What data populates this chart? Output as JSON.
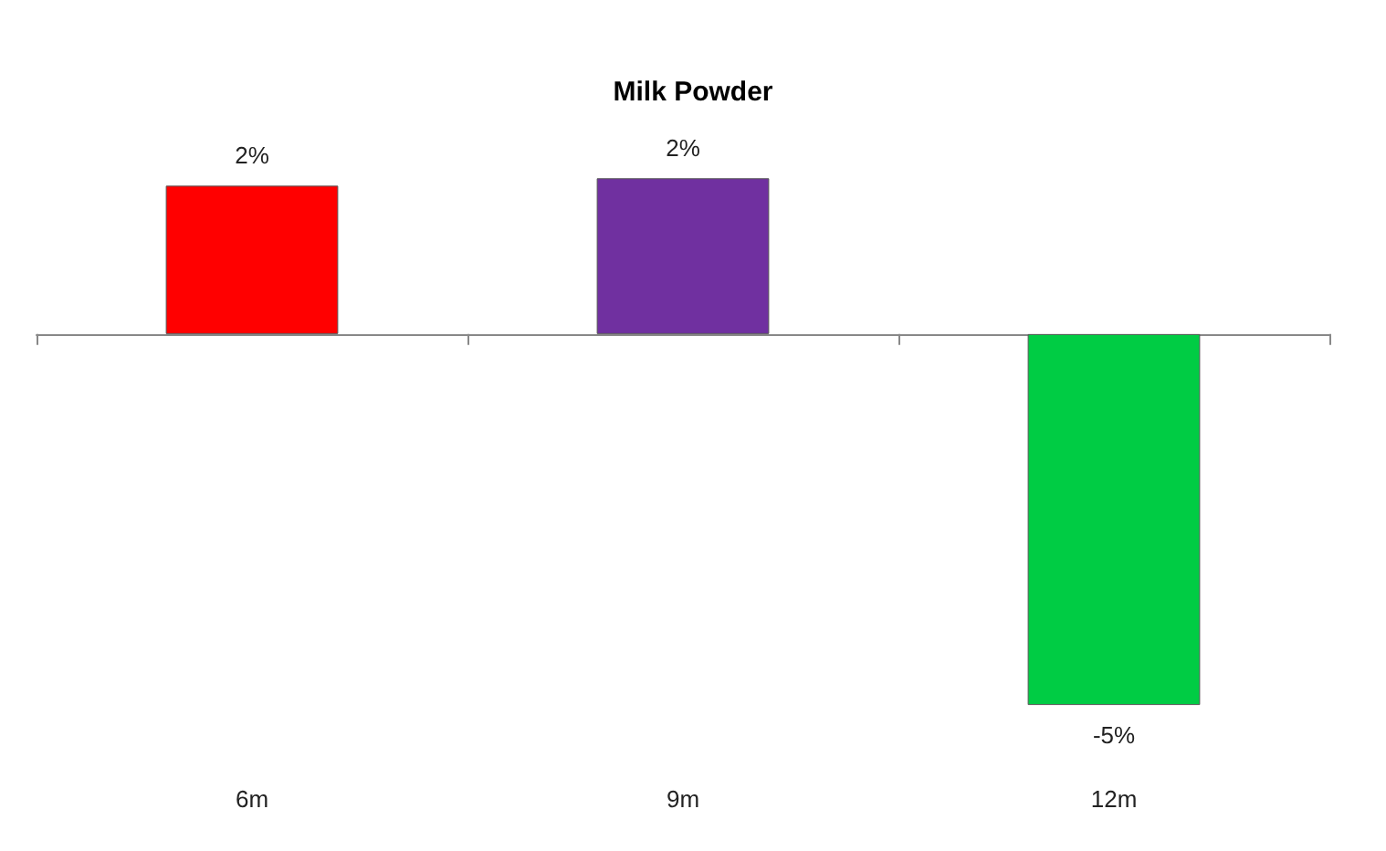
{
  "chart_data": {
    "type": "bar",
    "title": "Milk Powder",
    "categories": [
      "6m",
      "9m",
      "12m"
    ],
    "values": [
      2,
      2.1,
      -5
    ],
    "colors": [
      "#ff0000",
      "#7030a0",
      "#00cc44"
    ],
    "value_labels": [
      "2%",
      "2%",
      "-5%"
    ]
  }
}
